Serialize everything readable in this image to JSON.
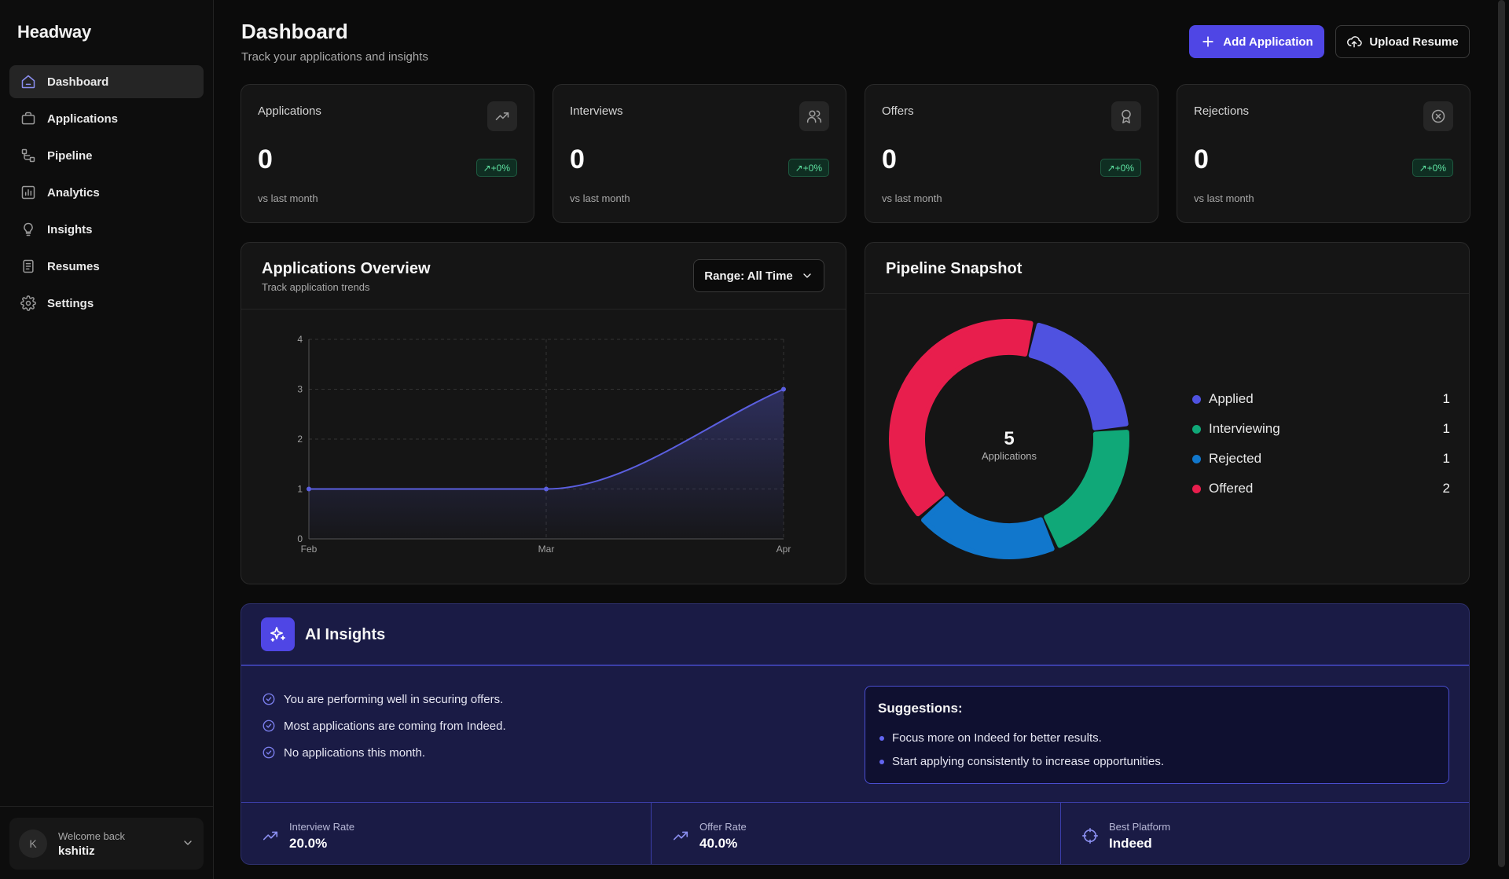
{
  "app": {
    "name": "Headway"
  },
  "sidebar": {
    "items": [
      {
        "label": "Dashboard",
        "icon": "home-icon",
        "active": true
      },
      {
        "label": "Applications",
        "icon": "briefcase-icon"
      },
      {
        "label": "Pipeline",
        "icon": "workflow-icon"
      },
      {
        "label": "Analytics",
        "icon": "bar-chart-icon"
      },
      {
        "label": "Insights",
        "icon": "lightbulb-icon"
      },
      {
        "label": "Resumes",
        "icon": "document-icon"
      },
      {
        "label": "Settings",
        "icon": "gear-icon"
      }
    ],
    "user": {
      "initial": "K",
      "welcome": "Welcome back",
      "name": "kshitiz"
    }
  },
  "header": {
    "title": "Dashboard",
    "subtitle": "Track your applications and insights",
    "add_label": "Add Application",
    "upload_label": "Upload Resume"
  },
  "stats": [
    {
      "label": "Applications",
      "value": "0",
      "change": "+0%",
      "foot": "vs last month",
      "icon": "trending-up-icon"
    },
    {
      "label": "Interviews",
      "value": "0",
      "change": "+0%",
      "foot": "vs last month",
      "icon": "users-icon"
    },
    {
      "label": "Offers",
      "value": "0",
      "change": "+0%",
      "foot": "vs last month",
      "icon": "award-icon"
    },
    {
      "label": "Rejections",
      "value": "0",
      "change": "+0%",
      "foot": "vs last month",
      "icon": "x-circle-icon"
    }
  ],
  "overview": {
    "title": "Applications Overview",
    "subtitle": "Track application trends",
    "range_label": "Range: All Time"
  },
  "pipeline": {
    "title": "Pipeline Snapshot",
    "total": "5",
    "total_label": "Applications"
  },
  "chart_data": [
    {
      "type": "area",
      "x": [
        "Feb",
        "Mar",
        "Apr"
      ],
      "series": [
        {
          "values": [
            1,
            1,
            3
          ]
        }
      ],
      "ylim": [
        0,
        4
      ],
      "yticks": [
        "0",
        "1",
        "2",
        "3",
        "4"
      ],
      "grid": true,
      "line_color": "#5b5fe0"
    },
    {
      "type": "pie",
      "categories": [
        "Applied",
        "Interviewing",
        "Rejected",
        "Offered"
      ],
      "values": [
        1,
        1,
        1,
        2
      ],
      "colors": [
        "#4f52e0",
        "#10a878",
        "#1177cc",
        "#e81e4d"
      ],
      "legend": "right"
    }
  ],
  "ai": {
    "title": "AI Insights",
    "insights": [
      "You are performing well in securing offers.",
      "Most applications are coming from Indeed.",
      "No applications this month."
    ],
    "suggestions_title": "Suggestions:",
    "suggestions": [
      "Focus more on Indeed for better results.",
      "Start applying consistently to increase opportunities."
    ],
    "metrics": [
      {
        "label": "Interview Rate",
        "value": "20.0%",
        "icon": "trending-up-icon"
      },
      {
        "label": "Offer Rate",
        "value": "40.0%",
        "icon": "trending-up-icon"
      },
      {
        "label": "Best Platform",
        "value": "Indeed",
        "icon": "crosshair-icon"
      }
    ]
  },
  "colors": {
    "accent": "#4f46e5",
    "badge_text": "#5ee2a2",
    "panel_bg": "#151515",
    "ai_bg": "#1a1b45"
  }
}
